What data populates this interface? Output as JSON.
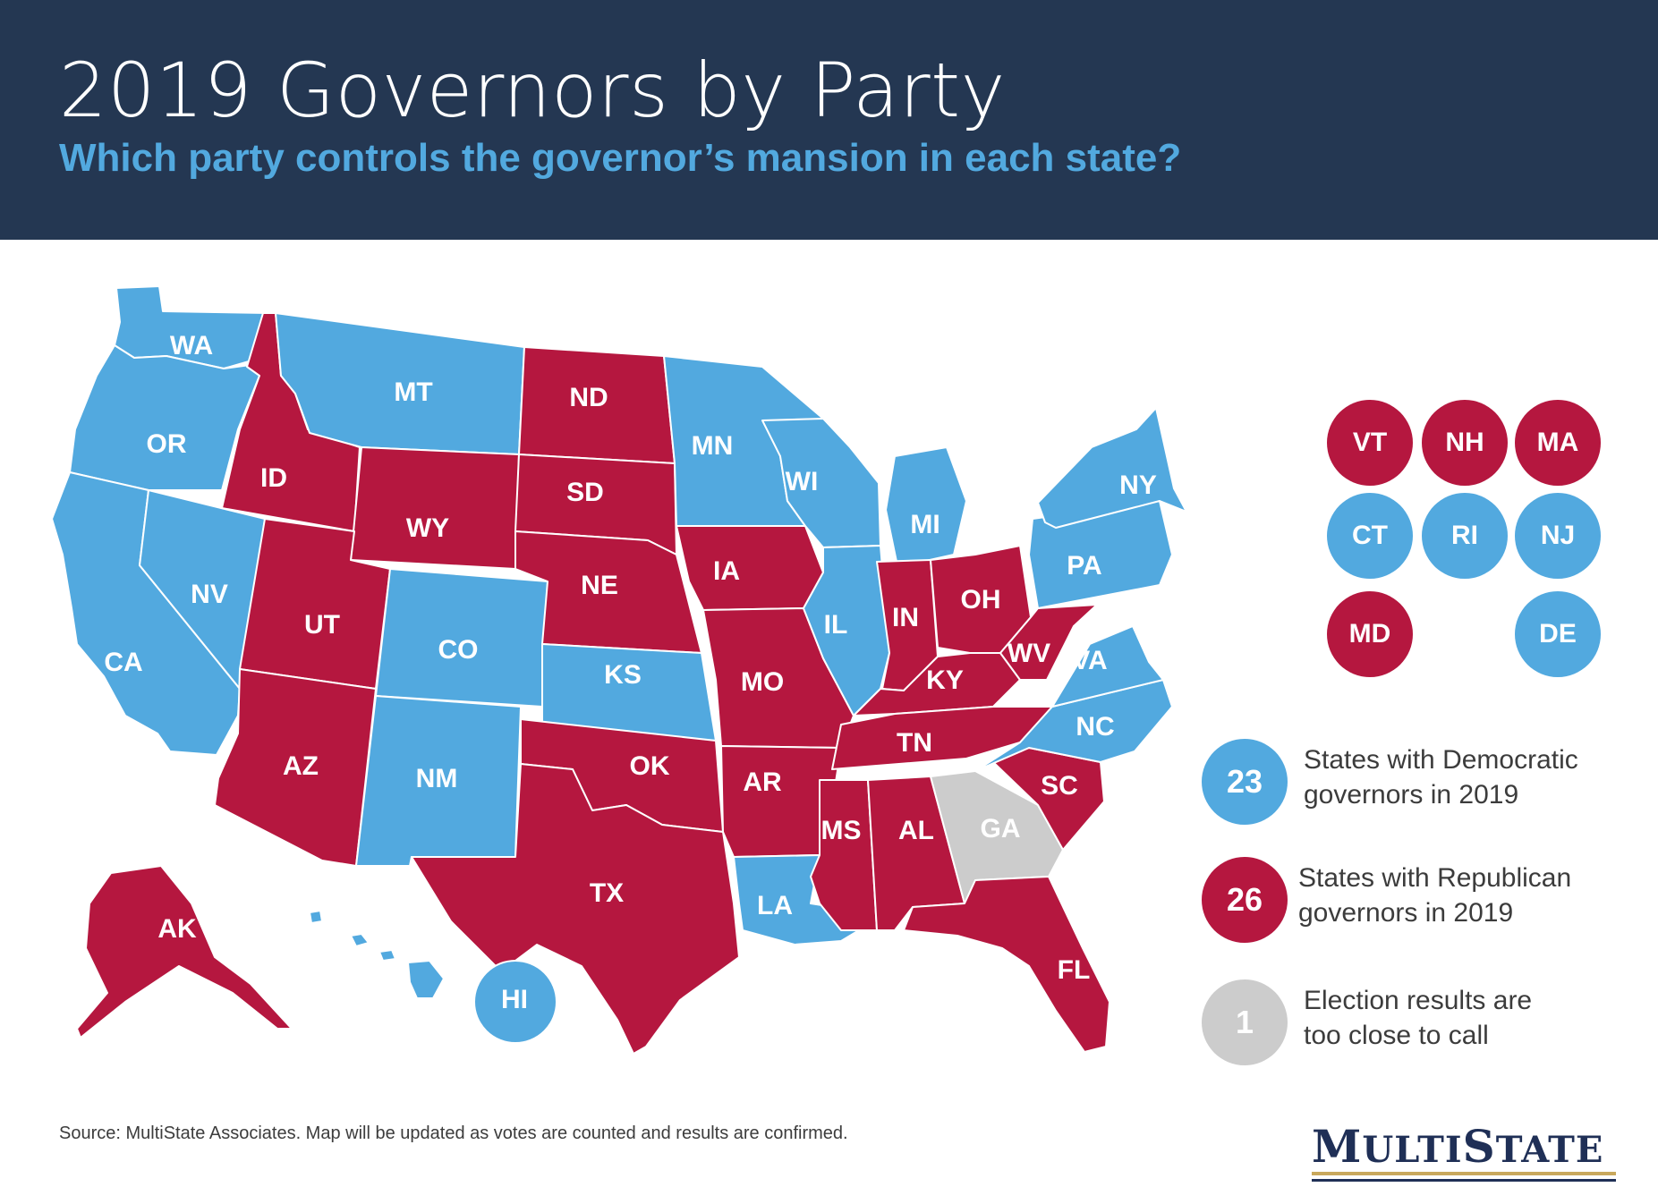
{
  "header": {
    "title": "2019 Governors by Party",
    "subtitle": "Which party controls the governor’s mansion in each state?"
  },
  "colors": {
    "democratic": "#52a9df",
    "republican": "#b5173f",
    "undecided": "#cccccc",
    "header_bg": "#243752",
    "subtitle": "#52a9df"
  },
  "map": {
    "states": [
      {
        "id": "WA",
        "party": "D"
      },
      {
        "id": "OR",
        "party": "D"
      },
      {
        "id": "CA",
        "party": "D"
      },
      {
        "id": "NV",
        "party": "D"
      },
      {
        "id": "ID",
        "party": "R"
      },
      {
        "id": "MT",
        "party": "D"
      },
      {
        "id": "WY",
        "party": "R"
      },
      {
        "id": "UT",
        "party": "R"
      },
      {
        "id": "AZ",
        "party": "R"
      },
      {
        "id": "CO",
        "party": "D"
      },
      {
        "id": "NM",
        "party": "D"
      },
      {
        "id": "ND",
        "party": "R"
      },
      {
        "id": "SD",
        "party": "R"
      },
      {
        "id": "NE",
        "party": "R"
      },
      {
        "id": "KS",
        "party": "D"
      },
      {
        "id": "OK",
        "party": "R"
      },
      {
        "id": "TX",
        "party": "R"
      },
      {
        "id": "MN",
        "party": "D"
      },
      {
        "id": "IA",
        "party": "R"
      },
      {
        "id": "MO",
        "party": "R"
      },
      {
        "id": "AR",
        "party": "R"
      },
      {
        "id": "LA",
        "party": "D"
      },
      {
        "id": "WI",
        "party": "D"
      },
      {
        "id": "IL",
        "party": "D"
      },
      {
        "id": "MI",
        "party": "D"
      },
      {
        "id": "IN",
        "party": "R"
      },
      {
        "id": "OH",
        "party": "R"
      },
      {
        "id": "KY",
        "party": "R"
      },
      {
        "id": "TN",
        "party": "R"
      },
      {
        "id": "MS",
        "party": "R"
      },
      {
        "id": "AL",
        "party": "R"
      },
      {
        "id": "GA",
        "party": "U"
      },
      {
        "id": "FL",
        "party": "R"
      },
      {
        "id": "SC",
        "party": "R"
      },
      {
        "id": "NC",
        "party": "D"
      },
      {
        "id": "VA",
        "party": "D"
      },
      {
        "id": "WV",
        "party": "R"
      },
      {
        "id": "PA",
        "party": "D"
      },
      {
        "id": "NY",
        "party": "D"
      },
      {
        "id": "ME",
        "party": "D"
      },
      {
        "id": "AK",
        "party": "R"
      },
      {
        "id": "HI",
        "party": "D"
      }
    ],
    "small_states": [
      {
        "label": "VT",
        "party": "R"
      },
      {
        "label": "NH",
        "party": "R"
      },
      {
        "label": "MA",
        "party": "R"
      },
      {
        "label": "CT",
        "party": "D"
      },
      {
        "label": "RI",
        "party": "D"
      },
      {
        "label": "NJ",
        "party": "D"
      },
      {
        "label": "MD",
        "party": "R"
      },
      {
        "label": "DE",
        "party": "D"
      }
    ]
  },
  "legend": [
    {
      "count": "23",
      "text_line1": "States with Democratic",
      "text_line2": "governors in 2019",
      "party": "D"
    },
    {
      "count": "26",
      "text_line1": "States with Republican",
      "text_line2": "governors in 2019",
      "party": "R"
    },
    {
      "count": "1",
      "text_line1": "Election results are",
      "text_line2": "too close to call",
      "party": "U"
    }
  ],
  "source": "Source: MultiState Associates. Map will be updated as votes are counted and results are confirmed.",
  "logo": "MultiState"
}
